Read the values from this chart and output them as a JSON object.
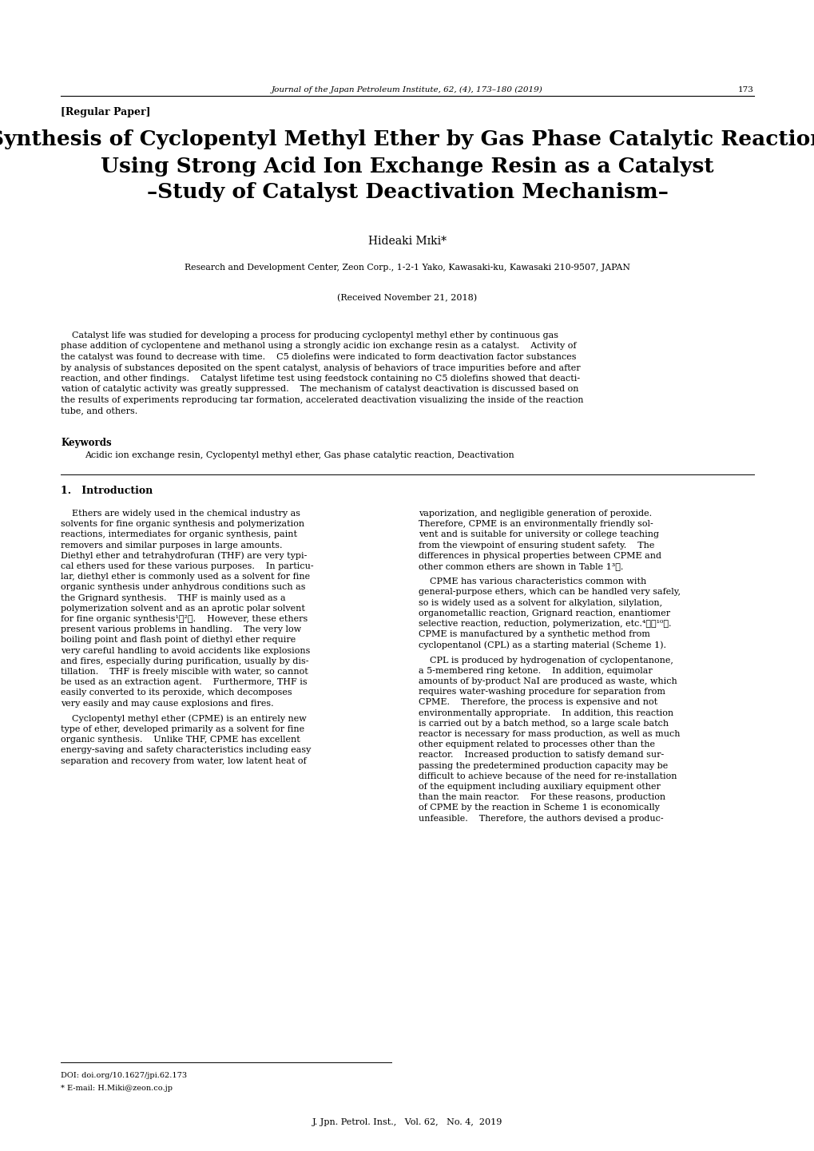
{
  "background_color": "#ffffff",
  "page_width": 10.2,
  "page_height": 14.41,
  "journal_header": "Journal of the Japan Petroleum Institute, 62, (4), 173–180 (2019)",
  "page_number": "173",
  "section_tag": "[Regular Paper]",
  "title_line1": "Synthesis of Cyclopentyl Methyl Ether by Gas Phase Catalytic Reaction",
  "title_line2": "Using Strong Acid Ion Exchange Resin as a Catalyst",
  "title_line3": "–Study of Catalyst Deactivation Mechanism–",
  "author": "Hideaki Mɪki*",
  "affiliation": "Research and Development Center, Zeon Corp., 1-2-1 Yako, Kawasaki-ku, Kawasaki 210-9507, JAPAN",
  "received": "(Received November 21, 2018)",
  "abstract": "    Catalyst life was studied for developing a process for producing cyclopentyl methyl ether by continuous gas phase addition of cyclopentene and methanol using a strongly acidic ion exchange resin as a catalyst.    Activity of the catalyst was found to decrease with time.    C5 diolefins were indicated to form deactivation factor substances by analysis of substances deposited on the spent catalyst, analysis of behaviors of trace impurities before and after reaction, and other findings.    Catalyst lifetime test using feedstock containing no C5 diolefins showed that deactivation of catalytic activity was greatly suppressed.    The mechanism of catalyst deactivation is discussed based on the results of experiments reproducing tar formation, accelerated deactivation visualizing the inside of the reaction tube, and others.",
  "keywords_label": "Keywords",
  "keywords": "Acidic ion exchange resin, Cyclopentyl methyl ether, Gas phase catalytic reaction, Deactivation",
  "section1_title": "1.   Introduction",
  "col1_para1": "    Ethers are widely used in the chemical industry as solvents for fine organic synthesis and polymerization reactions, intermediates for organic synthesis, paint removers and similar purposes in large amounts.    Diethyl ether and tetrahydrofuran (THF) are very typical ethers used for these various purposes.    In particular, diethyl ether is commonly used as a solvent for fine organic synthesis under anhydrous conditions such as the Grignard synthesis.    THF is mainly used as a polymerization solvent and as an aprotic polar solvent for fine organic synthesis¹，²）.    However, these ethers present various problems in handling.    The very low boiling point and flash point of diethyl ether require very careful handling to avoid accidents like explosions and fires, especially during purification, usually by distillation.    THF is freely miscible with water, so cannot be used as an extraction agent.    Furthermore, THF is easily converted to its peroxide, which decomposes very easily and may cause explosions and fires.",
  "col1_para2": "    Cyclopentyl methyl ether (CPME) is an entirely new type of ether, developed primarily as a solvent for fine organic synthesis.    Unlike THF, CPME has excellent energy-saving and safety characteristics including easy separation and recovery from water, low latent heat of",
  "col2_para1": "vaporization, and negligible generation of peroxide.    Therefore, CPME is an environmentally friendly solvent and is suitable for university or college teaching from the viewpoint of ensuring student safety.    The differences in physical properties between CPME and other common ethers are shown in Table 1³）.",
  "col2_para2": "    CPME has various characteristics common with general-purpose ethers, which can be handled very safely, so is widely used as a solvent for alkylation, silylation, organometallic reaction, Grignard reaction, enantiomer selective reaction, reduction, polymerization, etc.⁴）－¹⁰）.    CPME is manufactured by a synthetic method from cyclopentanol (CPL) as a starting material (Scheme 1).",
  "col2_para3": "    CPL is produced by hydrogenation of cyclopentanone, a 5-membered ring ketone.    In addition, equimolar amounts of by-product NaI are produced as waste, which requires water-washing procedure for separation from CPME.    Therefore, the process is expensive and not environmentally appropriate.    In addition, this reaction is carried out by a batch method, so a large scale batch reactor is necessary for mass production, as well as much other equipment related to processes other than the reactor.    Increased production to satisfy demand surpassing the predetermined production capacity may be difficult to achieve because of the need for re-installation of the equipment including auxiliary equipment other than the main reactor.    For these reasons, production of CPME by the reaction in Scheme 1 is economically unfeasible.    Therefore, the authors devised a produc-",
  "footer_doi": "DOI: doi.org/10.1627/jpi.62.173",
  "footer_email": "* E-mail: H.Miki@zeon.co.jp",
  "footer_journal": "J. Jpn. Petrol. Inst.,   Vol. 62,   No. 4,  2019"
}
